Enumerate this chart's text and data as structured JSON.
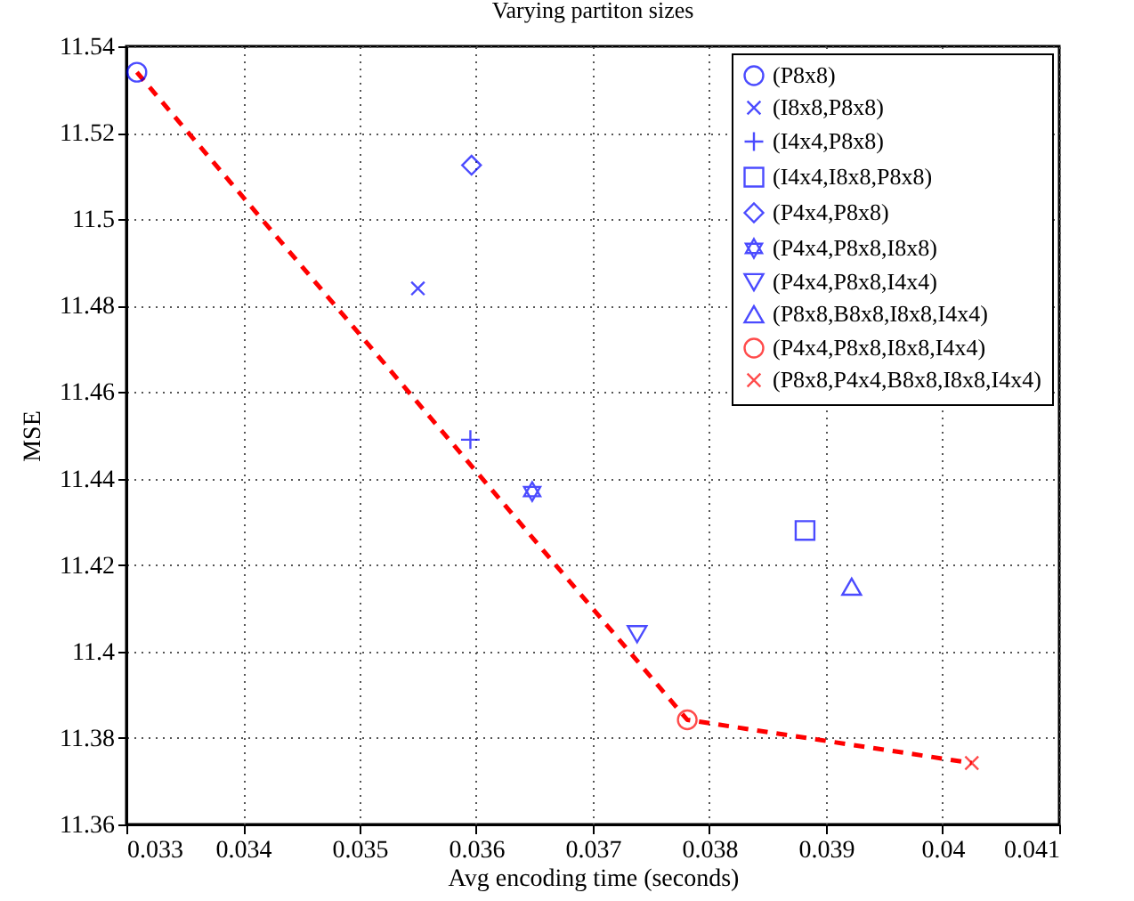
{
  "chart_data": {
    "type": "scatter",
    "title": "Varying partiton sizes",
    "xlabel": "Avg encoding time (seconds)",
    "ylabel": "MSE",
    "xlim": [
      0.033,
      0.041
    ],
    "xticks": [
      0.033,
      0.034,
      0.035,
      0.036,
      0.037,
      0.038,
      0.039,
      {
        "value": 0.04,
        "label": "0.04"
      },
      0.041
    ],
    "ylim": [
      11.36,
      11.54
    ],
    "yticks": [
      11.36,
      11.38,
      {
        "value": 11.4,
        "label": "11.4"
      },
      11.42,
      11.44,
      11.46,
      11.48,
      {
        "value": 11.5,
        "label": "11.5"
      },
      11.52,
      11.54
    ],
    "grid": true,
    "legend": "top right",
    "series": [
      {
        "name": "(P8x8)",
        "color": "#0000ff",
        "marker": "circle",
        "x": [
          0.03309
        ],
        "values": [
          11.534
        ]
      },
      {
        "name": "(I8x8,P8x8)",
        "color": "#0000ff",
        "marker": "cross",
        "x": [
          0.0355
        ],
        "values": [
          11.484
        ]
      },
      {
        "name": "(I4x4,P8x8)",
        "color": "#0000ff",
        "marker": "plus",
        "x": [
          0.03595
        ],
        "values": [
          11.449
        ]
      },
      {
        "name": "(I4x4,I8x8,P8x8)",
        "color": "#0000ff",
        "marker": "square",
        "x": [
          0.03882
        ],
        "values": [
          11.428
        ]
      },
      {
        "name": "(P4x4,P8x8)",
        "color": "#0000ff",
        "marker": "diamond",
        "x": [
          0.03596
        ],
        "values": [
          11.5125
        ]
      },
      {
        "name": "(P4x4,P8x8,I8x8)",
        "color": "#0000ff",
        "marker": "star",
        "x": [
          0.03648
        ],
        "values": [
          11.437
        ]
      },
      {
        "name": "(P4x4,P8x8,I4x4)",
        "color": "#0000ff",
        "marker": "triangle-down",
        "x": [
          0.03738
        ],
        "values": [
          11.404
        ]
      },
      {
        "name": "(P8x8,B8x8,I8x8,I4x4)",
        "color": "#0000ff",
        "marker": "triangle",
        "x": [
          0.03922
        ],
        "values": [
          11.415
        ]
      },
      {
        "name": "(P4x4,P8x8,I8x8,I4x4)",
        "color": "#ff0000",
        "marker": "circle",
        "x": [
          0.03781
        ],
        "values": [
          11.3842
        ]
      },
      {
        "name": "(P8x8,P4x4,B8x8,I8x8,I4x4)",
        "color": "#ff0000",
        "marker": "cross",
        "x": [
          0.04025
        ],
        "values": [
          11.3742
        ]
      },
      {
        "type": "line",
        "color": "#ff0000",
        "marker": "none",
        "line_style": "dashed",
        "x": [
          0.03309,
          0.03781,
          0.04025
        ],
        "values": [
          11.534,
          11.3842,
          11.3742
        ]
      }
    ]
  }
}
